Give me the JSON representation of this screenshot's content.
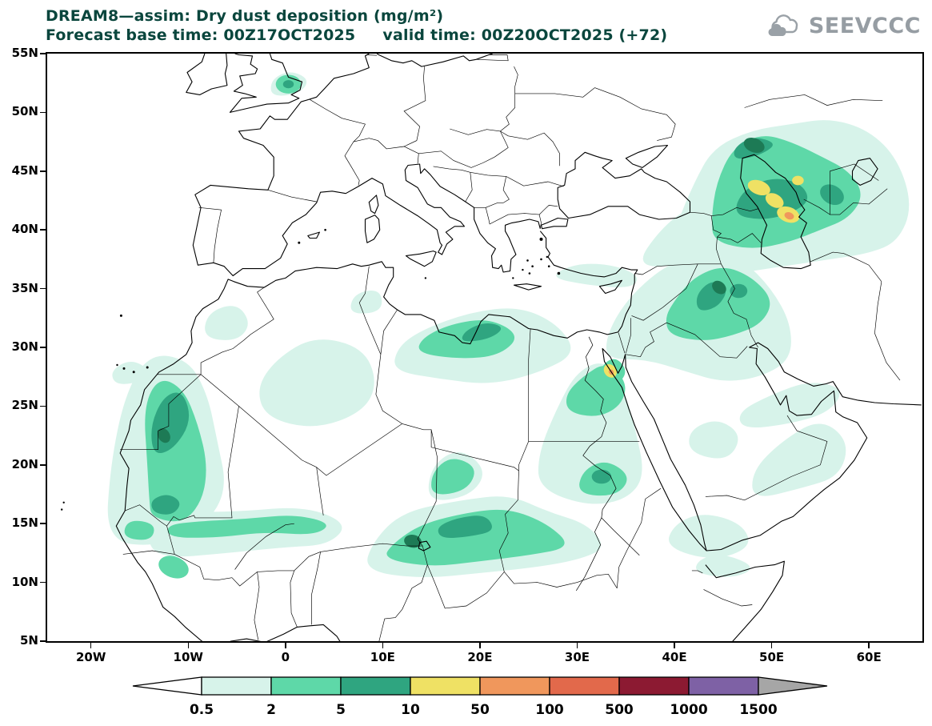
{
  "title": {
    "line1": "DREAM8—assim: Dry dust deposition (mg/m²)",
    "line2": "Forecast base time: 00Z17OCT2025     valid time: 00Z20OCT2025 (+72)",
    "color": "#0a463d"
  },
  "logo": {
    "text": "SEEVCCC",
    "color": "#969da3"
  },
  "axes": {
    "x_ticks": [
      {
        "lon": -20,
        "label": "20W"
      },
      {
        "lon": -10,
        "label": "10W"
      },
      {
        "lon": 0,
        "label": "0"
      },
      {
        "lon": 10,
        "label": "10E"
      },
      {
        "lon": 20,
        "label": "20E"
      },
      {
        "lon": 30,
        "label": "30E"
      },
      {
        "lon": 40,
        "label": "40E"
      },
      {
        "lon": 50,
        "label": "50E"
      },
      {
        "lon": 60,
        "label": "60E"
      }
    ],
    "y_ticks": [
      {
        "lat": 55,
        "label": "55N"
      },
      {
        "lat": 50,
        "label": "50N"
      },
      {
        "lat": 45,
        "label": "45N"
      },
      {
        "lat": 40,
        "label": "40N"
      },
      {
        "lat": 35,
        "label": "35N"
      },
      {
        "lat": 30,
        "label": "30N"
      },
      {
        "lat": 25,
        "label": "25N"
      },
      {
        "lat": 20,
        "label": "20N"
      },
      {
        "lat": 15,
        "label": "15N"
      },
      {
        "lat": 10,
        "label": "10N"
      },
      {
        "lat": 5,
        "label": "5N"
      }
    ]
  },
  "colorbar": {
    "labels": [
      "0.5",
      "2",
      "5",
      "10",
      "50",
      "100",
      "500",
      "1000",
      "1500"
    ],
    "segment_colors": [
      "#d7f3ea",
      "#5ed8a8",
      "#2fa580",
      "#efe164",
      "#f0975c",
      "#e2694b",
      "#8c1a32",
      "#7e61a5"
    ],
    "left_arrow_color": "#ffffff",
    "right_arrow_color": "#a6a6a6",
    "outline_color": "#000000"
  },
  "map": {
    "land_outline_color": "#000000",
    "extra_dark_green": "#1d7a55",
    "background": "#ffffff"
  },
  "chart_data": {
    "type": "heatmap",
    "variant": "filled_contour_geographic_map",
    "model": "DREAM8-assim",
    "variable": "Dry dust deposition",
    "units": "mg/m²",
    "forecast_base_time": "00Z17OCT2025",
    "valid_time": "00Z20OCT2025",
    "lead": "+72",
    "lon_range": [
      "25W",
      "65E"
    ],
    "lat_range": [
      "5N",
      "55N"
    ],
    "x_ticks": [
      "20W",
      "10W",
      "0",
      "10E",
      "20E",
      "30E",
      "40E",
      "50E",
      "60E"
    ],
    "y_ticks": [
      "5N",
      "10N",
      "15N",
      "20N",
      "25N",
      "30N",
      "35N",
      "40N",
      "45N",
      "50N",
      "55N"
    ],
    "contour_levels_mg_m2": [
      0.5,
      2,
      5,
      10,
      50,
      100,
      500,
      1000,
      1500
    ],
    "palette": [
      {
        "range": "0.5–2",
        "color": "#d7f3ea"
      },
      {
        "range": "2–5",
        "color": "#5ed8a8"
      },
      {
        "range": "5–10",
        "color": "#2fa580"
      },
      {
        "range": "10–50",
        "color": "#efe164"
      },
      {
        "range": "50–100",
        "color": "#f0975c"
      },
      {
        "range": "100–500",
        "color": "#e2694b"
      },
      {
        "range": "500–1000",
        "color": "#8c1a32"
      },
      {
        "range": "1000–1500",
        "color": "#7e61a5"
      },
      {
        "range": ">1500",
        "color": "#a6a6a6"
      }
    ],
    "max_depicted_level": "50–100 mg/m²",
    "regions": [
      {
        "area": "Western Sahara / Mauritania",
        "value_range_mg_m2": "2–10"
      },
      {
        "area": "Sahel belt (Senegal–Mali–Niger–Chad–Sudan, ~10–17N)",
        "value_range_mg_m2": "0.5–10"
      },
      {
        "area": "Bodélé / central Chad",
        "value_range_mg_m2": "5–10"
      },
      {
        "area": "NE Libya coastal strip",
        "value_range_mg_m2": "2–10"
      },
      {
        "area": "Egypt / Gulf of Suez",
        "value_range_mg_m2": "10–50 locally"
      },
      {
        "area": "Mesopotamia (Iraq / W Iran)",
        "value_range_mg_m2": "2–10"
      },
      {
        "area": "Caspian lowlands / Central Asia",
        "value_range_mg_m2": "10–100 in cores"
      },
      {
        "area": "Arabian Peninsula (scattered)",
        "value_range_mg_m2": "0.5–2"
      },
      {
        "area": "southern England / North Sea",
        "value_range_mg_m2": "0.5–5"
      }
    ]
  }
}
